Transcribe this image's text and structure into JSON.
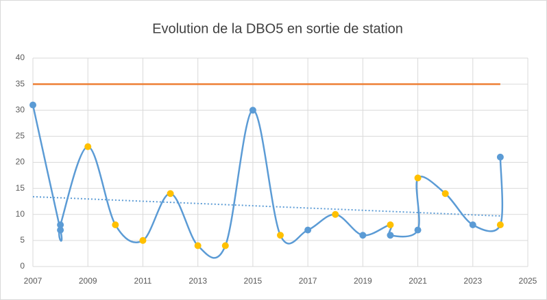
{
  "chart_data": {
    "type": "line",
    "title": "Evolution de la DBO5 en sortie de station",
    "xlim": [
      2007,
      2025
    ],
    "xticks": [
      2007,
      2009,
      2011,
      2013,
      2015,
      2017,
      2019,
      2021,
      2023,
      2025
    ],
    "ylim": [
      0,
      40
    ],
    "yticks": [
      0,
      5,
      10,
      15,
      20,
      25,
      30,
      35,
      40
    ],
    "grid": true,
    "series": [
      {
        "color": "#5b9bd5",
        "smooth": true,
        "x": [
          2007,
          2008,
          2008,
          2009,
          2010,
          2011,
          2012,
          2013,
          2014,
          2015,
          2016,
          2017,
          2018,
          2019,
          2020,
          2020,
          2021,
          2021,
          2022,
          2023,
          2024,
          2024
        ],
        "values": [
          31,
          7,
          8,
          23,
          8,
          5,
          14,
          4,
          4,
          30,
          6,
          7,
          10,
          6,
          8,
          6,
          7,
          17,
          14,
          8,
          8,
          21
        ],
        "point_colors": [
          "#5b9bd5",
          "#5b9bd5",
          "#5b9bd5",
          "#ffc000",
          "#ffc000",
          "#ffc000",
          "#ffc000",
          "#ffc000",
          "#ffc000",
          "#5b9bd5",
          "#ffc000",
          "#5b9bd5",
          "#ffc000",
          "#5b9bd5",
          "#ffc000",
          "#5b9bd5",
          "#5b9bd5",
          "#ffc000",
          "#ffc000",
          "#5b9bd5",
          "#ffc000",
          "#5b9bd5"
        ]
      },
      {
        "color": "#ed7d31",
        "x": [
          2007,
          2024
        ],
        "values": [
          35,
          35
        ]
      },
      {
        "color": "#5b9bd5",
        "dashed": true,
        "x": [
          2007,
          2024
        ],
        "values": [
          13.4,
          9.7
        ]
      }
    ]
  }
}
